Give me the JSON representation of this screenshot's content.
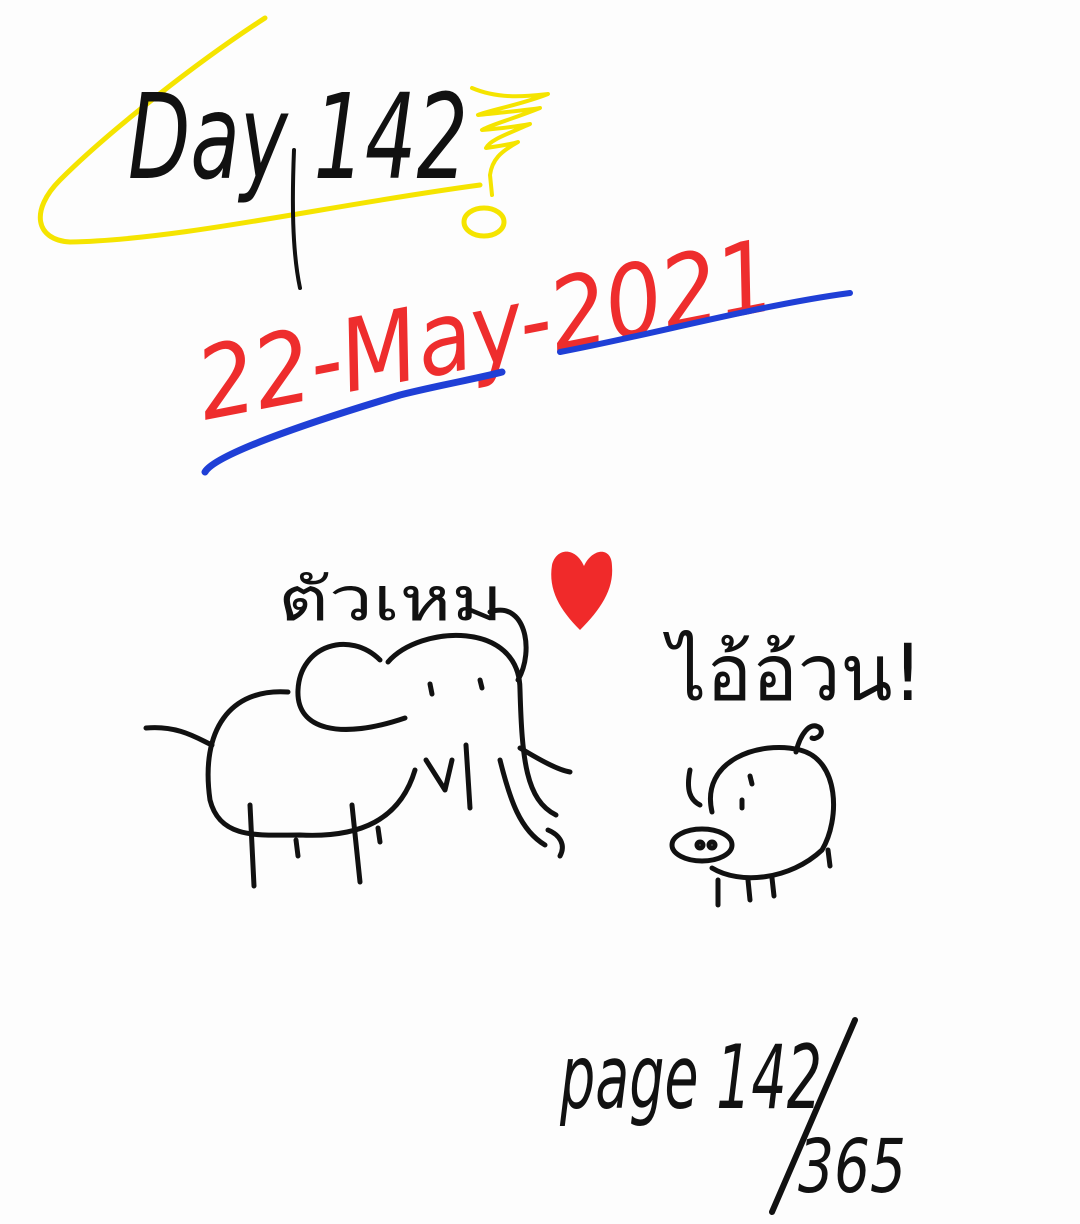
{
  "heading": {
    "day_label": "Day 142"
  },
  "date": {
    "text": "22-May-2021"
  },
  "drawing": {
    "elephant_caption": "ตัวเหม",
    "pig_caption": "ไอ้อ้วน!"
  },
  "page_counter": {
    "label": "page 142",
    "total": "365"
  },
  "colors": {
    "ink": "#111111",
    "highlight": "#f5e400",
    "date_red": "#ee2d2d",
    "underline_blue": "#1f3fd6",
    "heart": "#f02a2a"
  }
}
